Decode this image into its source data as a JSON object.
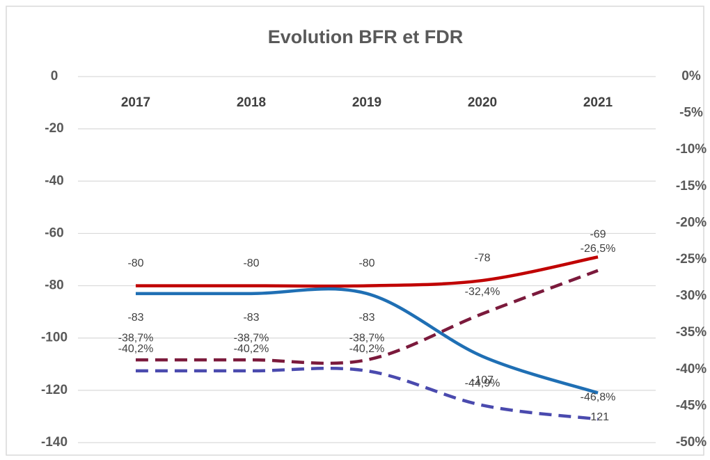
{
  "chart_data": {
    "type": "line",
    "title": "Evolution BFR et FDR",
    "categories": [
      "2017",
      "2018",
      "2019",
      "2020",
      "2021"
    ],
    "ylim": [
      -140,
      0
    ],
    "yticks": [
      0,
      -20,
      -40,
      -60,
      -80,
      -100,
      -120,
      -140
    ],
    "y2lim": [
      -50,
      0
    ],
    "y2ticks": [
      {
        "value": 0,
        "label": "0%"
      },
      {
        "value": -5,
        "label": "-5%"
      },
      {
        "value": -10,
        "label": "-10%"
      },
      {
        "value": -15,
        "label": "-15%"
      },
      {
        "value": -20,
        "label": "-20%"
      },
      {
        "value": -25,
        "label": "-25%"
      },
      {
        "value": -30,
        "label": "-30%"
      },
      {
        "value": -35,
        "label": "-35%"
      },
      {
        "value": -40,
        "label": "-40%"
      },
      {
        "value": -45,
        "label": "-45%"
      },
      {
        "value": -50,
        "label": "-50%"
      }
    ],
    "grid": true,
    "series": [
      {
        "color": "#c00000",
        "values": [
          -80,
          -80,
          -80,
          -78,
          -69
        ]
      },
      {
        "color": "#1f6fb4",
        "values": [
          -83,
          -83,
          -83,
          -107,
          -121
        ]
      },
      {
        "color": "#7b1a3c",
        "axis": "y2",
        "dashed": true,
        "values": [
          -38.7,
          -38.7,
          -38.7,
          -32.4,
          -26.5
        ],
        "value_labels": [
          "-38,7%",
          "-38,7%",
          "-38,7%",
          "-32,4%",
          "-26,5%"
        ]
      },
      {
        "color": "#4a4aae",
        "axis": "y2",
        "dashed": true,
        "values": [
          -40.2,
          -40.2,
          -40.2,
          -44.9,
          -46.8
        ],
        "value_labels": [
          "-40,2%",
          "-40,2%",
          "-40,2%",
          "-44,9%",
          "-46,8%"
        ]
      }
    ]
  }
}
